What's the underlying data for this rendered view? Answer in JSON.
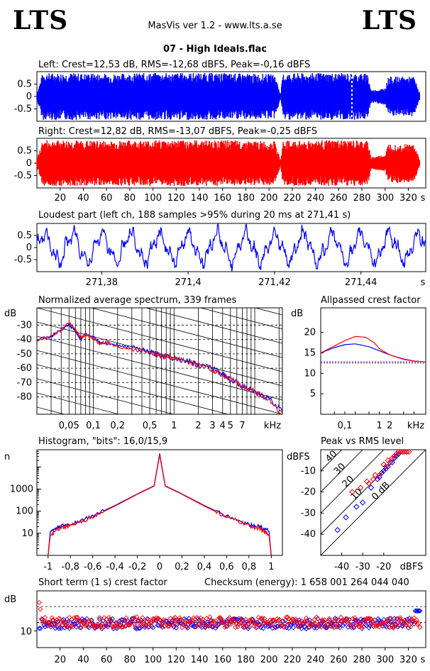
{
  "header": {
    "logo_left": "LTS",
    "logo_right": "LTS",
    "app": "MasVis ver 1.2 - www.lts.a.se",
    "file": "07 - High Ideals.flac"
  },
  "colors": {
    "left": "#0000ff",
    "right": "#ff0000",
    "grid": "#000000"
  },
  "chart_data": [
    {
      "id": "left-waveform",
      "type": "area",
      "title": "Left: Crest=12,53 dB, RMS=-12,68 dBFS, Peak=-0,16 dBFS",
      "series": [
        {
          "name": "left",
          "color": "#0000ff"
        }
      ],
      "ylim": [
        -1,
        1
      ],
      "yticks": [
        "0.5",
        "0",
        "-0.5"
      ],
      "xlim": [
        0,
        335
      ],
      "envelope": [
        [
          0,
          0.15
        ],
        [
          5,
          0.95
        ],
        [
          30,
          0.95
        ],
        [
          60,
          0.92
        ],
        [
          100,
          0.95
        ],
        [
          150,
          0.95
        ],
        [
          185,
          0.92
        ],
        [
          205,
          0.9
        ],
        [
          210,
          0.1
        ],
        [
          212,
          0.93
        ],
        [
          250,
          0.95
        ],
        [
          285,
          0.93
        ],
        [
          288,
          0.25
        ],
        [
          295,
          0.3
        ],
        [
          300,
          0.35
        ],
        [
          303,
          0.8
        ],
        [
          325,
          0.8
        ],
        [
          330,
          0.1
        ]
      ],
      "marker_x": 271.41
    },
    {
      "id": "right-waveform",
      "type": "area",
      "title": "Right: Crest=12,82 dB, RMS=-13,07 dBFS, Peak=-0,25 dBFS",
      "series": [
        {
          "name": "right",
          "color": "#ff0000"
        }
      ],
      "ylim": [
        -1,
        1
      ],
      "yticks": [
        "0.5",
        "0",
        "-0.5"
      ],
      "xlim": [
        0,
        335
      ],
      "xticks": [
        "20",
        "40",
        "60",
        "80",
        "100",
        "120",
        "140",
        "160",
        "180",
        "200",
        "220",
        "240",
        "260",
        "280",
        "300",
        "320"
      ],
      "xunit": "s",
      "envelope": [
        [
          0,
          0.15
        ],
        [
          5,
          0.92
        ],
        [
          30,
          0.92
        ],
        [
          60,
          0.9
        ],
        [
          100,
          0.93
        ],
        [
          150,
          0.93
        ],
        [
          185,
          0.9
        ],
        [
          205,
          0.88
        ],
        [
          210,
          0.1
        ],
        [
          212,
          0.9
        ],
        [
          250,
          0.93
        ],
        [
          285,
          0.9
        ],
        [
          288,
          0.25
        ],
        [
          295,
          0.3
        ],
        [
          300,
          0.35
        ],
        [
          303,
          0.8
        ],
        [
          325,
          0.78
        ],
        [
          330,
          0.1
        ]
      ]
    },
    {
      "id": "loudest-part",
      "type": "line",
      "title": "Loudest part (left  ch, 188 samples >95% during 20 ms at 271,41 s)",
      "series": [
        {
          "name": "left",
          "color": "#0000ff"
        }
      ],
      "ylim": [
        -1,
        1
      ],
      "yticks": [
        "0.5",
        "0",
        "-0.5"
      ],
      "xlim": [
        271.365,
        271.455
      ],
      "xticks": [
        "271,38",
        "271,4",
        "271,42",
        "271,44"
      ],
      "xunit": "s"
    },
    {
      "id": "avg-spectrum",
      "type": "line",
      "title": "Normalized average spectrum, 339 frames",
      "ylabel": "dB",
      "yticks": [
        "-30",
        "-40",
        "-50",
        "-60",
        "-70",
        "-80"
      ],
      "ylim": [
        -92,
        -18
      ],
      "xlabel": "kHz",
      "xticks": [
        "0,05",
        "0,1",
        "0,2",
        "0,5",
        "1",
        "2",
        "3",
        "4",
        "5",
        "7"
      ],
      "xscale": "log",
      "xlim_khz": [
        0.02,
        22
      ],
      "series": [
        {
          "color": "#0000ff",
          "points": [
            [
              0.02,
              -40
            ],
            [
              0.03,
              -38
            ],
            [
              0.04,
              -33
            ],
            [
              0.05,
              -30
            ],
            [
              0.06,
              -34
            ],
            [
              0.07,
              -40
            ],
            [
              0.08,
              -36
            ],
            [
              0.1,
              -38
            ],
            [
              0.12,
              -42
            ],
            [
              0.15,
              -43
            ],
            [
              0.2,
              -44
            ],
            [
              0.3,
              -46
            ],
            [
              0.5,
              -49
            ],
            [
              0.7,
              -51
            ],
            [
              1,
              -53
            ],
            [
              1.5,
              -55
            ],
            [
              2,
              -58
            ],
            [
              3,
              -60
            ],
            [
              4,
              -64
            ],
            [
              5,
              -68
            ],
            [
              7,
              -72
            ],
            [
              10,
              -77
            ],
            [
              15,
              -81
            ],
            [
              22,
              -90
            ]
          ]
        },
        {
          "color": "#ff0000",
          "points": [
            [
              0.02,
              -41
            ],
            [
              0.03,
              -37
            ],
            [
              0.04,
              -34
            ],
            [
              0.05,
              -28
            ],
            [
              0.06,
              -33
            ],
            [
              0.07,
              -39
            ],
            [
              0.08,
              -37
            ],
            [
              0.1,
              -39
            ],
            [
              0.12,
              -43
            ],
            [
              0.15,
              -42
            ],
            [
              0.2,
              -45
            ],
            [
              0.3,
              -47
            ],
            [
              0.5,
              -48
            ],
            [
              0.7,
              -52
            ],
            [
              1,
              -52
            ],
            [
              1.5,
              -56
            ],
            [
              2,
              -57
            ],
            [
              3,
              -61
            ],
            [
              4,
              -65
            ],
            [
              5,
              -67
            ],
            [
              7,
              -73
            ],
            [
              10,
              -76
            ],
            [
              15,
              -82
            ],
            [
              22,
              -92
            ]
          ]
        }
      ]
    },
    {
      "id": "allpass-crest",
      "type": "line",
      "title": "Allpassed crest factor",
      "ylabel": "dB",
      "yticks": [
        "20",
        "15",
        "10",
        "5"
      ],
      "ylim": [
        0,
        26
      ],
      "xlabel": "kHz",
      "xticks": [
        "0,1",
        "1",
        "2"
      ],
      "xscale": "log",
      "xlim_khz": [
        0.02,
        22
      ],
      "ref_left": 12.53,
      "ref_right": 12.82,
      "series": [
        {
          "color": "#0000ff",
          "points": [
            [
              0.02,
              15
            ],
            [
              0.05,
              16.3
            ],
            [
              0.1,
              17
            ],
            [
              0.2,
              17.2
            ],
            [
              0.5,
              16.5
            ],
            [
              1,
              15.5
            ],
            [
              2,
              14.5
            ],
            [
              5,
              13.5
            ],
            [
              10,
              13
            ],
            [
              22,
              12.8
            ]
          ]
        },
        {
          "color": "#ff0000",
          "points": [
            [
              0.02,
              15
            ],
            [
              0.05,
              16.7
            ],
            [
              0.1,
              18
            ],
            [
              0.2,
              19
            ],
            [
              0.4,
              18.8
            ],
            [
              0.7,
              17.5
            ],
            [
              1,
              16
            ],
            [
              2,
              14.5
            ],
            [
              5,
              13.4
            ],
            [
              10,
              13
            ],
            [
              22,
              12.8
            ]
          ]
        }
      ]
    },
    {
      "id": "histogram",
      "type": "line",
      "title": "Histogram, \"bits\": 16,0/15,9",
      "ylabel": "n",
      "yscale": "log",
      "yticks": [
        "1000",
        "100",
        "10"
      ],
      "ylim": [
        1,
        60000
      ],
      "xticks": [
        "-1",
        "-0,8",
        "-0,6",
        "-0,4",
        "-0,2",
        "0",
        "0,2",
        "0,4",
        "0,6",
        "0,8",
        "1"
      ],
      "xlim": [
        -1.1,
        1.1
      ],
      "series": [
        {
          "color": "#0000ff",
          "points": [
            [
              -1,
              1
            ],
            [
              -0.98,
              12
            ],
            [
              -0.9,
              20
            ],
            [
              -0.8,
              25
            ],
            [
              -0.6,
              60
            ],
            [
              -0.4,
              180
            ],
            [
              -0.2,
              600
            ],
            [
              -0.05,
              1400
            ],
            [
              0,
              40000
            ],
            [
              0.05,
              1400
            ],
            [
              0.2,
              600
            ],
            [
              0.4,
              180
            ],
            [
              0.6,
              60
            ],
            [
              0.8,
              25
            ],
            [
              0.9,
              20
            ],
            [
              0.98,
              12
            ],
            [
              1,
              1
            ]
          ]
        },
        {
          "color": "#ff0000",
          "points": [
            [
              -1,
              1
            ],
            [
              -0.98,
              8
            ],
            [
              -0.9,
              16
            ],
            [
              -0.8,
              22
            ],
            [
              -0.6,
              55
            ],
            [
              -0.4,
              170
            ],
            [
              -0.2,
              580
            ],
            [
              -0.05,
              1350
            ],
            [
              0,
              35000
            ],
            [
              0.05,
              1350
            ],
            [
              0.2,
              580
            ],
            [
              0.4,
              170
            ],
            [
              0.6,
              55
            ],
            [
              0.8,
              22
            ],
            [
              0.9,
              16
            ],
            [
              0.98,
              8
            ],
            [
              1,
              1
            ]
          ]
        }
      ]
    },
    {
      "id": "peak-vs-rms",
      "type": "scatter",
      "title": "Peak vs RMS level",
      "ylabel": "dBFS",
      "xlabel": "dBFS",
      "yticks": [
        "-10",
        "-20",
        "-30",
        "-40"
      ],
      "xticks": [
        "-40",
        "-30",
        "-20"
      ],
      "xlim": [
        -50,
        0
      ],
      "ylim": [
        -50,
        0
      ],
      "crest_lines": [
        "40",
        "30",
        "20",
        "10",
        "0 dB"
      ],
      "series": [
        {
          "color": "#0000ff",
          "points": [
            [
              -42,
              -38
            ],
            [
              -38,
              -32
            ],
            [
              -33,
              -27
            ],
            [
              -30,
              -25
            ],
            [
              -26,
              -18
            ],
            [
              -22,
              -13
            ],
            [
              -20,
              -10
            ],
            [
              -18,
              -8
            ],
            [
              -16,
              -6
            ],
            [
              -15,
              -4
            ],
            [
              -14,
              -3
            ],
            [
              -13,
              -2
            ],
            [
              -12,
              -1
            ],
            [
              -11,
              -1
            ],
            [
              -10,
              -1
            ],
            [
              -9,
              -1
            ],
            [
              -17,
              -6
            ],
            [
              -19,
              -9
            ],
            [
              -23,
              -14
            ],
            [
              -21,
              -11
            ]
          ]
        },
        {
          "color": "#ff0000",
          "points": [
            [
              -35,
              -20
            ],
            [
              -31,
              -18
            ],
            [
              -28,
              -15
            ],
            [
              -25,
              -14
            ],
            [
              -22,
              -12
            ],
            [
              -19,
              -8
            ],
            [
              -17,
              -6
            ],
            [
              -16,
              -4
            ],
            [
              -15,
              -3
            ],
            [
              -14,
              -2
            ],
            [
              -13,
              -1
            ],
            [
              -12,
              -1
            ],
            [
              -11,
              -1
            ],
            [
              -10,
              -1
            ],
            [
              -9,
              -1
            ],
            [
              -8,
              -1
            ],
            [
              -18,
              -5
            ],
            [
              -20,
              -7
            ],
            [
              -24,
              -12
            ],
            [
              -27,
              -16
            ]
          ]
        }
      ]
    },
    {
      "id": "short-term-crest",
      "type": "scatter",
      "title": "Short term (1 s) crest factor",
      "annotation": "Checksum (energy):  1 658 001 264 044 040",
      "ylabel": "dB",
      "yticks": [
        "10"
      ],
      "ylim": [
        5,
        22
      ],
      "xlim": [
        0,
        335
      ],
      "xticks": [
        "20",
        "40",
        "60",
        "80",
        "100",
        "120",
        "140",
        "160",
        "180",
        "200",
        "220",
        "240",
        "260",
        "280",
        "300",
        "320"
      ],
      "xunit": "s",
      "ref_left": 12.53,
      "ref_right": 12.82
    }
  ]
}
